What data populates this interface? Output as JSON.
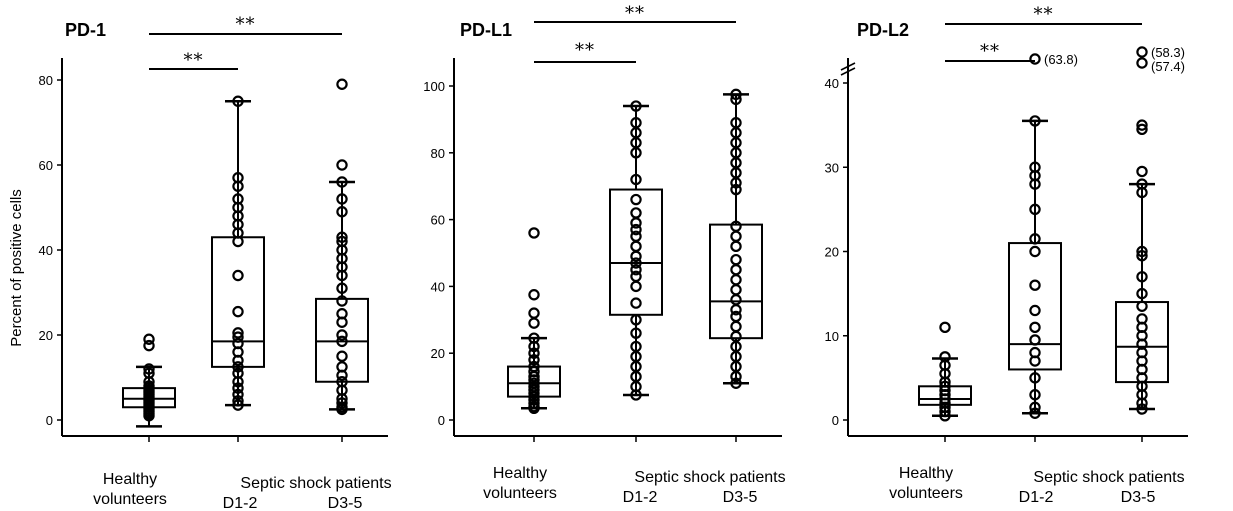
{
  "chart_data": [
    {
      "type": "box",
      "title": "PD-1",
      "ylabel": "Percent of positive cells",
      "ylim": [
        0,
        80
      ],
      "yticks": [
        0,
        20,
        40,
        60,
        80
      ],
      "group_labels": [
        "Healthy volunteers",
        "Septic shock patients"
      ],
      "categories": [
        "Healthy volunteers",
        "D1-2",
        "D3-5"
      ],
      "boxes": [
        {
          "category": "Healthy volunteers",
          "whisker_low": -1.5,
          "q1": 3,
          "median": 5,
          "q3": 7.5,
          "whisker_high": 12.5,
          "points": [
            19,
            17.5,
            12,
            11,
            9,
            8,
            7.5,
            7,
            6.5,
            6,
            5.5,
            5,
            4.5,
            4,
            3.5,
            3,
            2.5,
            2,
            1.5,
            1
          ]
        },
        {
          "category": "D1-2",
          "whisker_low": 3.5,
          "q1": 12.5,
          "median": 18.5,
          "q3": 43,
          "whisker_high": 75,
          "points": [
            75,
            57,
            55,
            52,
            50,
            48,
            46,
            44,
            42,
            34,
            25.5,
            20.5,
            19.5,
            18,
            16,
            14,
            12.5,
            11,
            9,
            7.5,
            6,
            4.5,
            3.5
          ]
        },
        {
          "category": "D3-5",
          "whisker_low": 2.5,
          "q1": 9,
          "median": 18.5,
          "q3": 28.5,
          "whisker_high": 56,
          "points": [
            79,
            60,
            56,
            52,
            49,
            43,
            42,
            40,
            38,
            36,
            34,
            31,
            28,
            25,
            23,
            20,
            18.5,
            15,
            12.5,
            10.5,
            9,
            7,
            5,
            4,
            3,
            2.5
          ]
        }
      ],
      "significance": [
        {
          "from": "Healthy volunteers",
          "to": "D1-2",
          "label": "**"
        },
        {
          "from": "Healthy volunteers",
          "to": "D3-5",
          "label": "**"
        }
      ],
      "outlier_labels": []
    },
    {
      "type": "box",
      "title": "PD-L1",
      "ylabel": "",
      "ylim": [
        0,
        100
      ],
      "yticks": [
        0,
        20,
        40,
        60,
        80,
        100
      ],
      "group_labels": [
        "Healthy volunteers",
        "Septic shock patients"
      ],
      "categories": [
        "Healthy volunteers",
        "D1-2",
        "D3-5"
      ],
      "boxes": [
        {
          "category": "Healthy volunteers",
          "whisker_low": 3.5,
          "q1": 7,
          "median": 11,
          "q3": 16,
          "whisker_high": 24.5,
          "points": [
            56,
            37.5,
            32,
            29,
            24.5,
            22,
            20,
            18,
            16,
            14.5,
            13,
            12,
            11,
            10,
            9,
            8,
            7,
            6,
            5,
            4,
            3.5
          ]
        },
        {
          "category": "D1-2",
          "whisker_low": 7.5,
          "q1": 31.5,
          "median": 47,
          "q3": 69,
          "whisker_high": 94,
          "points": [
            94,
            89,
            86,
            83,
            80,
            72,
            66,
            62,
            59,
            57,
            55,
            52,
            49,
            47,
            45,
            43,
            40,
            35,
            30,
            26,
            22,
            19,
            16,
            13,
            10,
            7.5
          ]
        },
        {
          "category": "D3-5",
          "whisker_low": 11,
          "q1": 24.5,
          "median": 35.5,
          "q3": 58.5,
          "whisker_high": 97.5,
          "points": [
            97.5,
            96,
            89,
            86,
            83,
            80,
            77,
            74,
            71,
            69,
            58,
            55,
            52,
            48,
            45,
            42,
            39,
            36,
            33,
            31,
            28,
            25,
            22,
            19,
            16,
            13,
            11
          ]
        }
      ],
      "significance": [
        {
          "from": "Healthy volunteers",
          "to": "D1-2",
          "label": "**"
        },
        {
          "from": "Healthy volunteers",
          "to": "D3-5",
          "label": "**"
        }
      ],
      "outlier_labels": []
    },
    {
      "type": "box",
      "title": "PD-L2",
      "ylabel": "",
      "ylim": [
        0,
        40
      ],
      "yticks": [
        0,
        10,
        20,
        30,
        40
      ],
      "axis_break": true,
      "group_labels": [
        "Healthy volunteers",
        "Septic shock patients"
      ],
      "categories": [
        "Healthy volunteers",
        "D1-2",
        "D3-5"
      ],
      "boxes": [
        {
          "category": "Healthy volunteers",
          "whisker_low": 0.5,
          "q1": 1.8,
          "median": 2.5,
          "q3": 4,
          "whisker_high": 7.3,
          "points": [
            11,
            7.5,
            6.5,
            5.5,
            4.5,
            4,
            3.5,
            3,
            2.5,
            2,
            1.5,
            1,
            0.5
          ]
        },
        {
          "category": "D1-2",
          "whisker_low": 0.8,
          "q1": 6,
          "median": 9,
          "q3": 21,
          "whisker_high": 35.5,
          "points": [
            35.5,
            30,
            29,
            28,
            25,
            21.5,
            20,
            16,
            13,
            11,
            9.5,
            8,
            7,
            5,
            3,
            1.5,
            0.8
          ]
        },
        {
          "category": "D3-5",
          "whisker_low": 1.3,
          "q1": 4.5,
          "median": 8.7,
          "q3": 14,
          "whisker_high": 28,
          "points": [
            35,
            34.5,
            29.5,
            28,
            27,
            20,
            19.5,
            17,
            15,
            13.5,
            12,
            11,
            10,
            9,
            8,
            7,
            6,
            5,
            4,
            3,
            2,
            1.3
          ]
        }
      ],
      "outliers_above_break": [
        {
          "category": "D1-2",
          "value": 63.8,
          "label": "(63.8)"
        },
        {
          "category": "D3-5",
          "value": 58.3,
          "label": "(58.3)"
        },
        {
          "category": "D3-5",
          "value": 57.4,
          "label": "(57.4)"
        }
      ],
      "significance": [
        {
          "from": "Healthy volunteers",
          "to": "D1-2",
          "label": "**"
        },
        {
          "from": "Healthy volunteers",
          "to": "D3-5",
          "label": "**"
        }
      ]
    }
  ]
}
